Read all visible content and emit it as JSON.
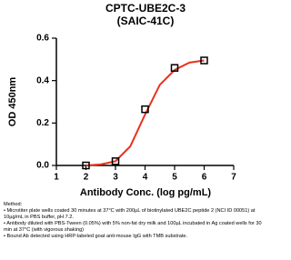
{
  "chart_data": {
    "type": "scatter",
    "title": "CPTC-UBE2C-3",
    "subtitle": "(SAIC-41C)",
    "x_label": "Antibody Conc. (log pg/mL)",
    "y_label": "OD 450nm",
    "xlim": [
      1,
      7
    ],
    "xticks": [
      1,
      2,
      3,
      4,
      5,
      6,
      7
    ],
    "ylim": [
      0,
      0.6
    ],
    "yticks": [
      {
        "value": 0,
        "label": "0.0"
      },
      0.2,
      0.4,
      0.6
    ],
    "series": [
      {
        "marker": "square",
        "color": "#000000",
        "x": [
          2,
          3,
          4,
          5,
          6
        ],
        "values": [
          0.0,
          0.02,
          0.265,
          0.46,
          0.495
        ]
      },
      {
        "marker": "line",
        "color": "#e8321e",
        "x": [
          2,
          2.5,
          3,
          3.5,
          4,
          4.5,
          5,
          5.5,
          6
        ],
        "values": [
          0.0,
          0.005,
          0.02,
          0.09,
          0.24,
          0.38,
          0.45,
          0.485,
          0.495
        ]
      }
    ],
    "method_title": "Method:",
    "method": [
      "• Microtiter plate wells coated 30 minutes at 37°C  with 200µL of biotinylated UBE2C peptide 2 (NCI ID 00051) at 10µg/mL in PBS buffer, pH 7.2.",
      "• Antibody diluted with PBS-Tween (0.05%) with 5% non-fat dry milk and 100µL incubated in Ag coated wells for 30 min at 37°C (with vigorous shaking)",
      "• Bound Ab detected using HRP-labeled goat anti-mouse IgG with TMB substrate."
    ]
  }
}
